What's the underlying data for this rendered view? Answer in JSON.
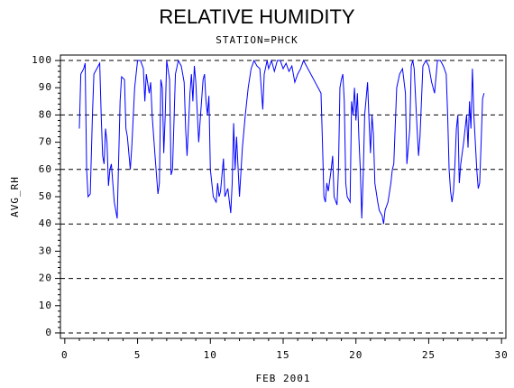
{
  "chart_data": {
    "type": "line",
    "title": "RELATIVE HUMIDITY",
    "subtitle": "STATION=PHCK",
    "xlabel": "FEB 2001",
    "ylabel": "AVG_RH",
    "color": "#0000ff",
    "xlim": [
      -0.3,
      30.3
    ],
    "ylim": [
      -2,
      102
    ],
    "xticks": [
      0,
      5,
      10,
      15,
      20,
      25,
      30
    ],
    "yticks": [
      0,
      10,
      20,
      30,
      40,
      50,
      60,
      70,
      80,
      90,
      100
    ],
    "grid_lines": [
      0,
      20,
      40,
      60,
      80,
      100
    ],
    "x": [
      1.0,
      1.1,
      1.3,
      1.4,
      1.5,
      1.6,
      1.75,
      1.9,
      2.0,
      2.2,
      2.4,
      2.5,
      2.6,
      2.7,
      2.8,
      2.9,
      3.0,
      3.1,
      3.2,
      3.4,
      3.6,
      3.8,
      3.9,
      4.1,
      4.2,
      4.3,
      4.5,
      4.6,
      4.8,
      5.0,
      5.2,
      5.4,
      5.5,
      5.6,
      5.8,
      5.9,
      6.0,
      6.2,
      6.4,
      6.5,
      6.6,
      6.7,
      6.8,
      6.9,
      7.0,
      7.2,
      7.3,
      7.4,
      7.6,
      7.8,
      8.0,
      8.2,
      8.3,
      8.4,
      8.6,
      8.7,
      8.8,
      8.9,
      9.0,
      9.2,
      9.3,
      9.5,
      9.6,
      9.7,
      9.8,
      9.9,
      10.0,
      10.2,
      10.4,
      10.5,
      10.6,
      10.7,
      10.9,
      11.0,
      11.2,
      11.4,
      11.5,
      11.6,
      11.7,
      11.8,
      12.0,
      12.2,
      12.4,
      12.6,
      12.8,
      13.0,
      13.2,
      13.4,
      13.6,
      13.7,
      13.9,
      14.0,
      14.2,
      14.4,
      14.6,
      14.8,
      15.0,
      15.2,
      15.4,
      15.6,
      15.8,
      16.0,
      16.2,
      16.4,
      16.6,
      16.8,
      17.0,
      17.2,
      17.4,
      17.6,
      17.7,
      17.8,
      17.9,
      18.0,
      18.1,
      18.3,
      18.4,
      18.5,
      18.7,
      18.8,
      18.9,
      19.0,
      19.1,
      19.2,
      19.3,
      19.4,
      19.6,
      19.7,
      19.8,
      19.9,
      20.0,
      20.1,
      20.2,
      20.3,
      20.4,
      20.5,
      20.6,
      20.8,
      20.9,
      21.0,
      21.1,
      21.2,
      21.3,
      21.5,
      21.6,
      21.8,
      21.9,
      22.0,
      22.2,
      22.4,
      22.5,
      22.6,
      22.8,
      23.0,
      23.2,
      23.4,
      23.5,
      23.7,
      23.8,
      23.9,
      24.0,
      24.2,
      24.3,
      24.4,
      24.6,
      24.8,
      25.0,
      25.2,
      25.4,
      25.6,
      25.8,
      26.0,
      26.2,
      26.3,
      26.4,
      26.5,
      26.6,
      26.7,
      26.8,
      26.9,
      27.0,
      27.1,
      27.2,
      27.4,
      27.6,
      27.7,
      27.8,
      27.9,
      28.0,
      28.1,
      28.2,
      28.3,
      28.4,
      28.5,
      28.6,
      28.7,
      28.8
    ],
    "values": [
      75,
      95,
      97,
      99,
      60,
      50,
      51,
      80,
      95,
      97,
      99,
      80,
      65,
      62,
      75,
      70,
      54,
      60,
      62,
      48,
      42,
      85,
      94,
      93,
      75,
      72,
      60,
      68,
      90,
      100,
      100,
      97,
      85,
      95,
      88,
      92,
      80,
      65,
      51,
      55,
      93,
      90,
      66,
      80,
      100,
      93,
      58,
      60,
      95,
      100,
      98,
      92,
      75,
      65,
      88,
      95,
      85,
      98,
      92,
      70,
      78,
      93,
      95,
      85,
      80,
      87,
      60,
      50,
      48,
      55,
      50,
      52,
      64,
      50,
      53,
      44,
      55,
      77,
      60,
      72,
      50,
      68,
      80,
      90,
      97,
      100,
      98,
      97,
      82,
      95,
      100,
      97,
      100,
      96,
      100,
      100,
      97,
      99,
      96,
      98,
      92,
      95,
      97,
      100,
      98,
      96,
      94,
      92,
      90,
      88,
      70,
      50,
      48,
      55,
      52,
      60,
      65,
      50,
      47,
      60,
      90,
      93,
      95,
      85,
      55,
      50,
      48,
      85,
      80,
      90,
      78,
      88,
      72,
      60,
      42,
      58,
      80,
      92,
      78,
      66,
      80,
      73,
      55,
      48,
      45,
      43,
      40,
      45,
      48,
      55,
      60,
      62,
      90,
      95,
      97,
      88,
      62,
      75,
      98,
      100,
      97,
      75,
      65,
      72,
      98,
      100,
      98,
      92,
      88,
      100,
      100,
      98,
      95,
      80,
      60,
      52,
      48,
      52,
      62,
      75,
      80,
      55,
      62,
      70,
      80,
      68,
      85,
      75,
      97,
      80,
      70,
      60,
      53,
      55,
      70,
      86,
      88
    ]
  }
}
